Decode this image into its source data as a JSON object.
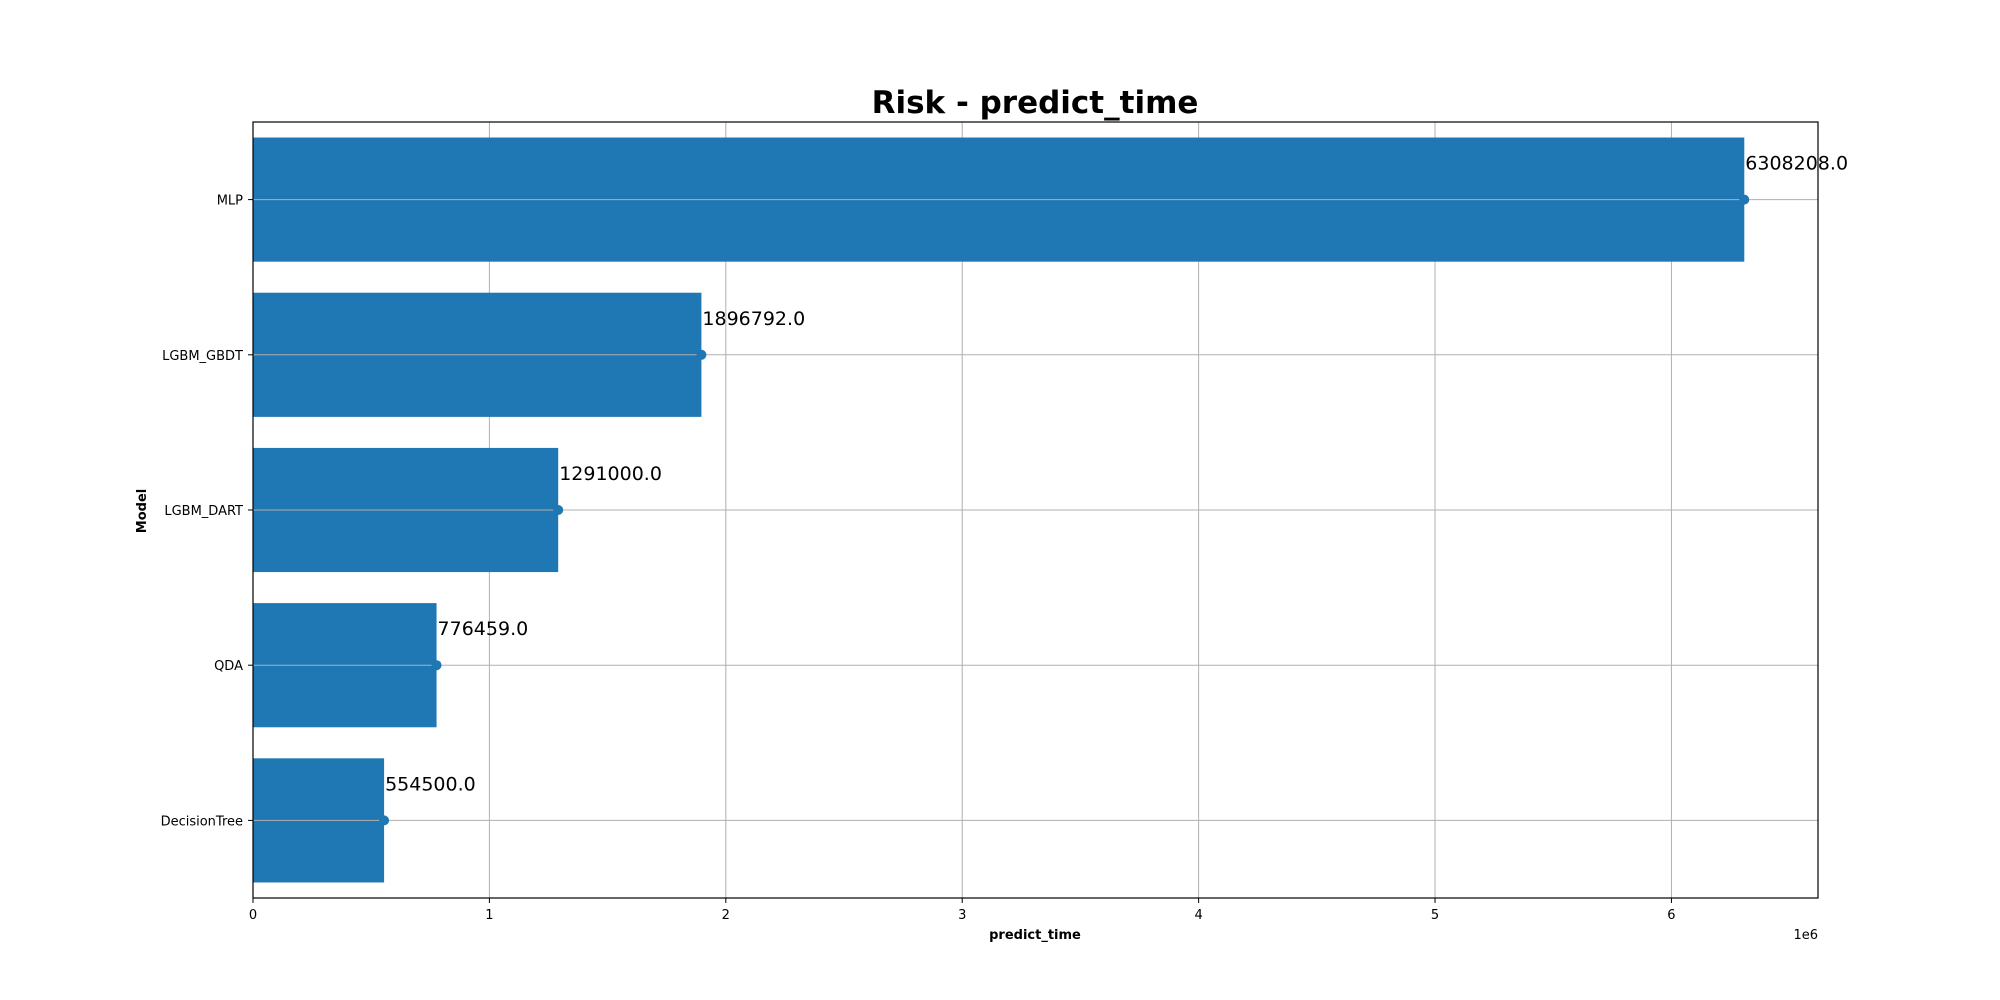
{
  "chart_data": {
    "type": "bar",
    "orientation": "horizontal",
    "title": "Risk - predict_time",
    "xlabel": "predict_time",
    "ylabel": "Model",
    "x_offset_text": "1e6",
    "categories": [
      "MLP",
      "LGBM_GBDT",
      "LGBM_DART",
      "QDA",
      "DecisionTree"
    ],
    "values": [
      6308208.0,
      1896792.0,
      1291000.0,
      776459.0,
      554500.0
    ],
    "value_labels": [
      "6308208.0",
      "1896792.0",
      "1291000.0",
      "776459.0",
      "554500.0"
    ],
    "xlim": [
      0,
      6620000
    ],
    "x_ticks": [
      0,
      1000000,
      2000000,
      3000000,
      4000000,
      5000000,
      6000000
    ],
    "x_tick_labels": [
      "0",
      "1",
      "2",
      "3",
      "4",
      "5",
      "6"
    ],
    "grid": true,
    "bar_color": "#1f77b4",
    "marker_color": "#1f77b4",
    "grid_color": "#b0b0b0"
  }
}
